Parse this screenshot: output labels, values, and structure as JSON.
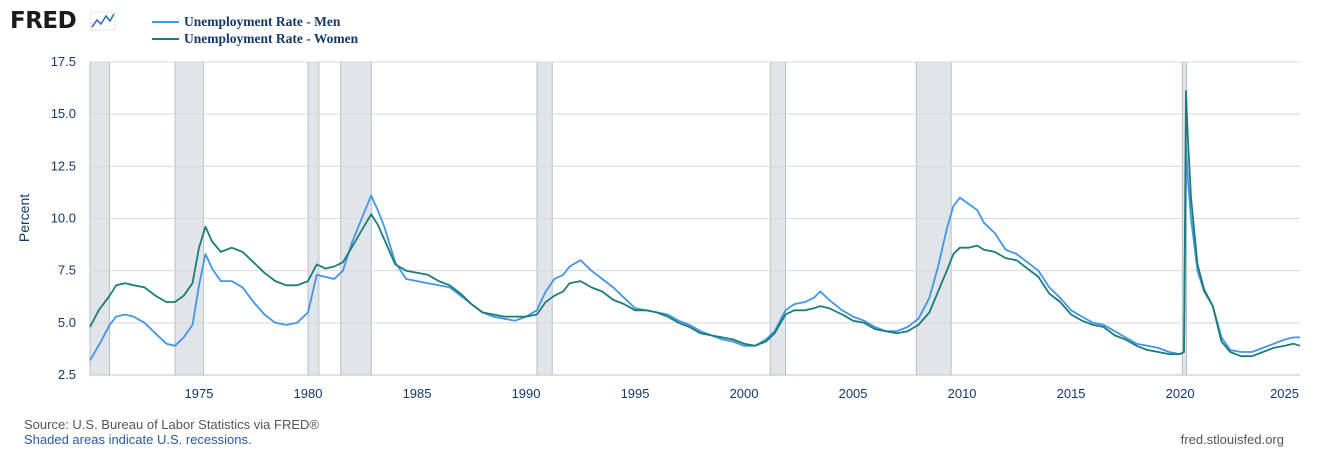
{
  "header": {
    "logo_text": "FRED",
    "logo_icon": "line-graph-icon"
  },
  "colors": {
    "men": "#4395e8",
    "women": "#1b7d76",
    "recession": "#e1e5ea",
    "grid": "#d8d8d8",
    "text": "#15396b"
  },
  "footer": {
    "source": "Source: U.S. Bureau of Labor Statistics via FRED®",
    "recession_note": "Shaded areas indicate U.S. recessions.",
    "site": "fred.stlouisfed.org"
  },
  "chart_data": {
    "type": "line",
    "title": "",
    "xlabel": "",
    "ylabel": "Percent",
    "xlim": [
      1970.0,
      2025.5
    ],
    "ylim": [
      2.5,
      17.5
    ],
    "yticks": [
      "2.5",
      "5.0",
      "7.5",
      "10.0",
      "12.5",
      "15.0",
      "17.5"
    ],
    "xticks": [
      "1975",
      "1980",
      "1985",
      "1990",
      "1995",
      "2000",
      "2005",
      "2010",
      "2015",
      "2020",
      "2025"
    ],
    "grid": true,
    "legend_position": "top-left",
    "recessions": [
      [
        1970.0,
        1970.9
      ],
      [
        1973.9,
        1975.2
      ],
      [
        1980.0,
        1980.5
      ],
      [
        1981.5,
        1982.9
      ],
      [
        1990.5,
        1991.2
      ],
      [
        2001.2,
        2001.9
      ],
      [
        2007.9,
        2009.5
      ],
      [
        2020.1,
        2020.3
      ]
    ],
    "series": [
      {
        "name": "Unemployment Rate - Men",
        "points": [
          [
            1970.0,
            3.2
          ],
          [
            1970.5,
            4.1
          ],
          [
            1970.9,
            4.9
          ],
          [
            1971.2,
            5.3
          ],
          [
            1971.6,
            5.4
          ],
          [
            1972.0,
            5.3
          ],
          [
            1972.5,
            5.0
          ],
          [
            1973.0,
            4.5
          ],
          [
            1973.5,
            4.0
          ],
          [
            1973.9,
            3.9
          ],
          [
            1974.3,
            4.3
          ],
          [
            1974.7,
            4.9
          ],
          [
            1975.0,
            6.8
          ],
          [
            1975.3,
            8.3
          ],
          [
            1975.6,
            7.6
          ],
          [
            1976.0,
            7.0
          ],
          [
            1976.5,
            7.0
          ],
          [
            1977.0,
            6.7
          ],
          [
            1977.5,
            6.0
          ],
          [
            1978.0,
            5.4
          ],
          [
            1978.5,
            5.0
          ],
          [
            1979.0,
            4.9
          ],
          [
            1979.5,
            5.0
          ],
          [
            1980.0,
            5.5
          ],
          [
            1980.4,
            7.3
          ],
          [
            1980.8,
            7.2
          ],
          [
            1981.2,
            7.1
          ],
          [
            1981.6,
            7.5
          ],
          [
            1982.0,
            8.8
          ],
          [
            1982.5,
            10.1
          ],
          [
            1982.9,
            11.1
          ],
          [
            1983.2,
            10.4
          ],
          [
            1983.5,
            9.6
          ],
          [
            1984.0,
            7.9
          ],
          [
            1984.5,
            7.1
          ],
          [
            1985.0,
            7.0
          ],
          [
            1985.5,
            6.9
          ],
          [
            1986.0,
            6.8
          ],
          [
            1986.5,
            6.7
          ],
          [
            1987.0,
            6.3
          ],
          [
            1987.5,
            5.9
          ],
          [
            1988.0,
            5.5
          ],
          [
            1988.5,
            5.3
          ],
          [
            1989.0,
            5.2
          ],
          [
            1989.5,
            5.1
          ],
          [
            1990.0,
            5.3
          ],
          [
            1990.5,
            5.6
          ],
          [
            1990.9,
            6.5
          ],
          [
            1991.3,
            7.1
          ],
          [
            1991.7,
            7.3
          ],
          [
            1992.0,
            7.7
          ],
          [
            1992.5,
            8.0
          ],
          [
            1993.0,
            7.5
          ],
          [
            1993.5,
            7.1
          ],
          [
            1994.0,
            6.7
          ],
          [
            1994.5,
            6.2
          ],
          [
            1995.0,
            5.7
          ],
          [
            1995.5,
            5.6
          ],
          [
            1996.0,
            5.5
          ],
          [
            1996.5,
            5.4
          ],
          [
            1997.0,
            5.1
          ],
          [
            1997.5,
            4.9
          ],
          [
            1998.0,
            4.6
          ],
          [
            1998.5,
            4.4
          ],
          [
            1999.0,
            4.2
          ],
          [
            1999.5,
            4.1
          ],
          [
            2000.0,
            3.9
          ],
          [
            2000.5,
            3.9
          ],
          [
            2001.0,
            4.2
          ],
          [
            2001.4,
            4.6
          ],
          [
            2001.9,
            5.6
          ],
          [
            2002.3,
            5.9
          ],
          [
            2002.8,
            6.0
          ],
          [
            2003.2,
            6.2
          ],
          [
            2003.5,
            6.5
          ],
          [
            2003.9,
            6.1
          ],
          [
            2004.5,
            5.6
          ],
          [
            2005.0,
            5.3
          ],
          [
            2005.5,
            5.1
          ],
          [
            2006.0,
            4.8
          ],
          [
            2006.5,
            4.6
          ],
          [
            2007.0,
            4.6
          ],
          [
            2007.5,
            4.8
          ],
          [
            2008.0,
            5.2
          ],
          [
            2008.5,
            6.2
          ],
          [
            2008.9,
            7.7
          ],
          [
            2009.3,
            9.5
          ],
          [
            2009.6,
            10.6
          ],
          [
            2009.9,
            11.0
          ],
          [
            2010.3,
            10.7
          ],
          [
            2010.7,
            10.4
          ],
          [
            2011.0,
            9.8
          ],
          [
            2011.5,
            9.3
          ],
          [
            2012.0,
            8.5
          ],
          [
            2012.5,
            8.3
          ],
          [
            2013.0,
            7.9
          ],
          [
            2013.5,
            7.5
          ],
          [
            2014.0,
            6.7
          ],
          [
            2014.5,
            6.2
          ],
          [
            2015.0,
            5.6
          ],
          [
            2015.5,
            5.3
          ],
          [
            2016.0,
            5.0
          ],
          [
            2016.5,
            4.9
          ],
          [
            2017.0,
            4.6
          ],
          [
            2017.5,
            4.3
          ],
          [
            2018.0,
            4.0
          ],
          [
            2018.5,
            3.9
          ],
          [
            2019.0,
            3.8
          ],
          [
            2019.5,
            3.6
          ],
          [
            2020.0,
            3.5
          ],
          [
            2020.18,
            3.6
          ],
          [
            2020.27,
            13.5
          ],
          [
            2020.35,
            12.0
          ],
          [
            2020.5,
            10.0
          ],
          [
            2020.8,
            7.5
          ],
          [
            2021.1,
            6.5
          ],
          [
            2021.5,
            5.8
          ],
          [
            2021.9,
            4.3
          ],
          [
            2022.3,
            3.7
          ],
          [
            2022.8,
            3.6
          ],
          [
            2023.3,
            3.6
          ],
          [
            2023.8,
            3.8
          ],
          [
            2024.3,
            4.0
          ],
          [
            2024.8,
            4.2
          ],
          [
            2025.2,
            4.3
          ],
          [
            2025.5,
            4.3
          ]
        ]
      },
      {
        "name": "Unemployment Rate - Women",
        "points": [
          [
            1970.0,
            4.8
          ],
          [
            1970.4,
            5.6
          ],
          [
            1970.9,
            6.3
          ],
          [
            1971.2,
            6.8
          ],
          [
            1971.6,
            6.9
          ],
          [
            1972.0,
            6.8
          ],
          [
            1972.5,
            6.7
          ],
          [
            1973.0,
            6.3
          ],
          [
            1973.5,
            6.0
          ],
          [
            1973.9,
            6.0
          ],
          [
            1974.3,
            6.3
          ],
          [
            1974.7,
            6.9
          ],
          [
            1975.0,
            8.6
          ],
          [
            1975.3,
            9.6
          ],
          [
            1975.6,
            8.9
          ],
          [
            1976.0,
            8.4
          ],
          [
            1976.5,
            8.6
          ],
          [
            1977.0,
            8.4
          ],
          [
            1977.5,
            7.9
          ],
          [
            1978.0,
            7.4
          ],
          [
            1978.5,
            7.0
          ],
          [
            1979.0,
            6.8
          ],
          [
            1979.5,
            6.8
          ],
          [
            1980.0,
            7.0
          ],
          [
            1980.4,
            7.8
          ],
          [
            1980.8,
            7.6
          ],
          [
            1981.2,
            7.7
          ],
          [
            1981.6,
            7.9
          ],
          [
            1982.0,
            8.6
          ],
          [
            1982.5,
            9.5
          ],
          [
            1982.9,
            10.2
          ],
          [
            1983.2,
            9.7
          ],
          [
            1983.5,
            9.0
          ],
          [
            1984.0,
            7.8
          ],
          [
            1984.5,
            7.5
          ],
          [
            1985.0,
            7.4
          ],
          [
            1985.5,
            7.3
          ],
          [
            1986.0,
            7.0
          ],
          [
            1986.5,
            6.8
          ],
          [
            1987.0,
            6.4
          ],
          [
            1987.5,
            5.9
          ],
          [
            1988.0,
            5.5
          ],
          [
            1988.5,
            5.4
          ],
          [
            1989.0,
            5.3
          ],
          [
            1989.5,
            5.3
          ],
          [
            1990.0,
            5.3
          ],
          [
            1990.5,
            5.4
          ],
          [
            1990.9,
            6.0
          ],
          [
            1991.3,
            6.3
          ],
          [
            1991.7,
            6.5
          ],
          [
            1992.0,
            6.9
          ],
          [
            1992.5,
            7.0
          ],
          [
            1993.0,
            6.7
          ],
          [
            1993.5,
            6.5
          ],
          [
            1994.0,
            6.1
          ],
          [
            1994.5,
            5.9
          ],
          [
            1995.0,
            5.6
          ],
          [
            1995.5,
            5.6
          ],
          [
            1996.0,
            5.5
          ],
          [
            1996.5,
            5.3
          ],
          [
            1997.0,
            5.0
          ],
          [
            1997.5,
            4.8
          ],
          [
            1998.0,
            4.5
          ],
          [
            1998.5,
            4.4
          ],
          [
            1999.0,
            4.3
          ],
          [
            1999.5,
            4.2
          ],
          [
            2000.0,
            4.0
          ],
          [
            2000.5,
            3.9
          ],
          [
            2001.0,
            4.1
          ],
          [
            2001.4,
            4.5
          ],
          [
            2001.9,
            5.4
          ],
          [
            2002.3,
            5.6
          ],
          [
            2002.8,
            5.6
          ],
          [
            2003.2,
            5.7
          ],
          [
            2003.5,
            5.8
          ],
          [
            2003.9,
            5.7
          ],
          [
            2004.5,
            5.4
          ],
          [
            2005.0,
            5.1
          ],
          [
            2005.5,
            5.0
          ],
          [
            2006.0,
            4.7
          ],
          [
            2006.5,
            4.6
          ],
          [
            2007.0,
            4.5
          ],
          [
            2007.5,
            4.6
          ],
          [
            2008.0,
            4.9
          ],
          [
            2008.5,
            5.5
          ],
          [
            2008.9,
            6.5
          ],
          [
            2009.3,
            7.5
          ],
          [
            2009.6,
            8.3
          ],
          [
            2009.9,
            8.6
          ],
          [
            2010.3,
            8.6
          ],
          [
            2010.7,
            8.7
          ],
          [
            2011.0,
            8.5
          ],
          [
            2011.5,
            8.4
          ],
          [
            2012.0,
            8.1
          ],
          [
            2012.5,
            8.0
          ],
          [
            2013.0,
            7.6
          ],
          [
            2013.5,
            7.2
          ],
          [
            2014.0,
            6.4
          ],
          [
            2014.5,
            6.0
          ],
          [
            2015.0,
            5.4
          ],
          [
            2015.5,
            5.1
          ],
          [
            2016.0,
            4.9
          ],
          [
            2016.5,
            4.8
          ],
          [
            2017.0,
            4.4
          ],
          [
            2017.5,
            4.2
          ],
          [
            2018.0,
            3.9
          ],
          [
            2018.5,
            3.7
          ],
          [
            2019.0,
            3.6
          ],
          [
            2019.5,
            3.5
          ],
          [
            2020.0,
            3.5
          ],
          [
            2020.18,
            3.6
          ],
          [
            2020.27,
            16.1
          ],
          [
            2020.35,
            14.0
          ],
          [
            2020.5,
            11.0
          ],
          [
            2020.8,
            7.8
          ],
          [
            2021.1,
            6.6
          ],
          [
            2021.5,
            5.8
          ],
          [
            2021.9,
            4.1
          ],
          [
            2022.3,
            3.6
          ],
          [
            2022.8,
            3.4
          ],
          [
            2023.3,
            3.4
          ],
          [
            2023.8,
            3.6
          ],
          [
            2024.3,
            3.8
          ],
          [
            2024.8,
            3.9
          ],
          [
            2025.2,
            4.0
          ],
          [
            2025.5,
            3.9
          ]
        ]
      }
    ]
  }
}
